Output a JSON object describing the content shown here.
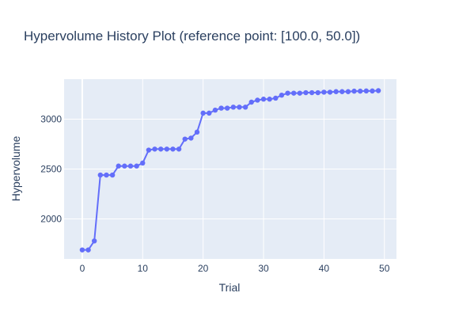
{
  "chart_data": {
    "type": "line",
    "title": "Hypervolume History Plot (reference point: [100.0, 50.0])",
    "xlabel": "Trial",
    "ylabel": "Hypervolume",
    "xlim": [
      -3,
      52
    ],
    "ylim": [
      1600,
      3400
    ],
    "xticks": [
      0,
      10,
      20,
      30,
      40,
      50
    ],
    "xtick_labels": [
      "0",
      "10",
      "20",
      "30",
      "40",
      "50"
    ],
    "yticks": [
      2000,
      2500,
      3000
    ],
    "ytick_labels": [
      "2000",
      "2500",
      "3000"
    ],
    "grid": true,
    "legend": "none",
    "series": [
      {
        "name": "Hypervolume",
        "mode": "lines+markers",
        "x": [
          0,
          1,
          2,
          3,
          4,
          5,
          6,
          7,
          8,
          9,
          10,
          11,
          12,
          13,
          14,
          15,
          16,
          17,
          18,
          19,
          20,
          21,
          22,
          23,
          24,
          25,
          26,
          27,
          28,
          29,
          30,
          31,
          32,
          33,
          34,
          35,
          36,
          37,
          38,
          39,
          40,
          41,
          42,
          43,
          44,
          45,
          46,
          47,
          48,
          49
        ],
        "values": [
          1690,
          1690,
          1780,
          2440,
          2440,
          2440,
          2530,
          2530,
          2530,
          2530,
          2560,
          2690,
          2700,
          2700,
          2700,
          2700,
          2700,
          2800,
          2810,
          2870,
          3060,
          3060,
          3090,
          3110,
          3110,
          3120,
          3120,
          3120,
          3170,
          3190,
          3200,
          3200,
          3210,
          3240,
          3260,
          3260,
          3260,
          3265,
          3265,
          3265,
          3270,
          3270,
          3275,
          3275,
          3275,
          3280,
          3280,
          3282,
          3282,
          3285
        ]
      }
    ]
  },
  "colors": {
    "plot_background": "#e5ecf6",
    "grid": "#ffffff",
    "line": "#636efa",
    "marker": "#636efa",
    "text": "#2a3f5f"
  }
}
